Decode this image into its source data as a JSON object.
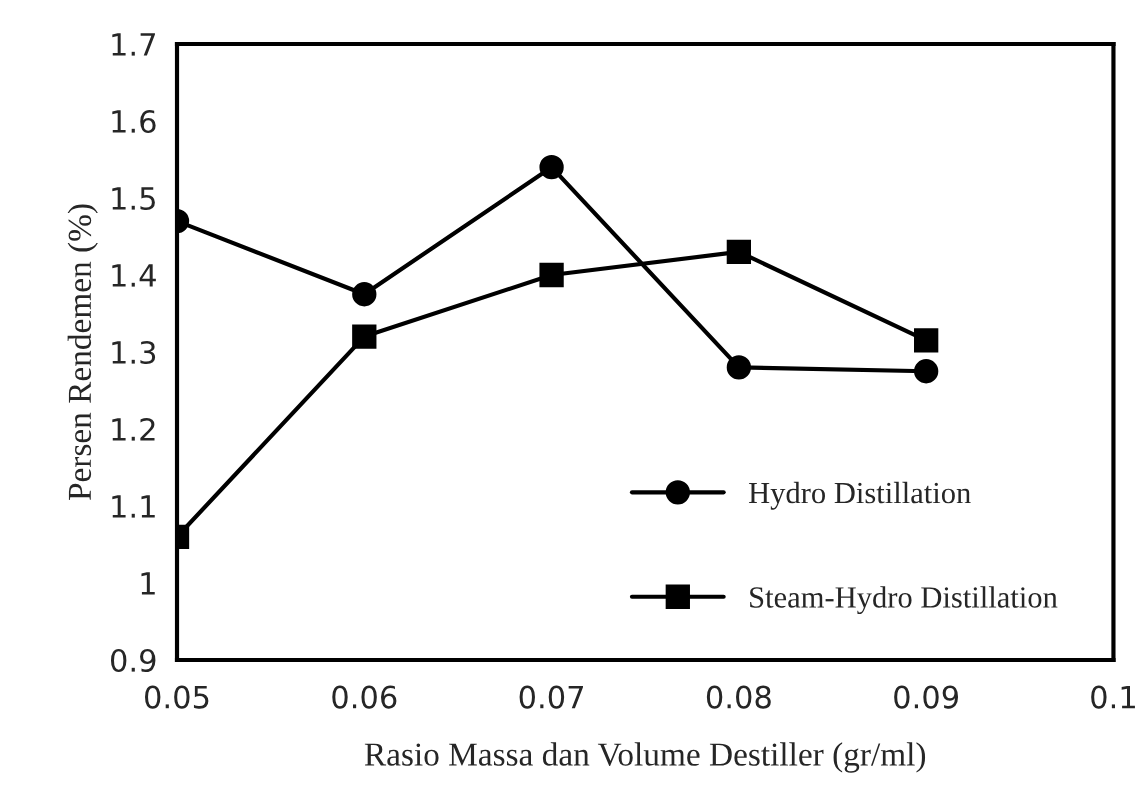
{
  "chart_data": {
    "type": "line",
    "xlabel": "Rasio Massa dan Volume Destiller (gr/ml)",
    "ylabel": "Persen Rendemen (%)",
    "x": [
      0.05,
      0.06,
      0.07,
      0.08,
      0.09
    ],
    "series": [
      {
        "name": "Hydro Distillation",
        "color": "#000000",
        "marker": "circle",
        "values": [
          1.47,
          1.375,
          1.54,
          1.28,
          1.275
        ]
      },
      {
        "name": "Steam-Hydro Distillation",
        "color": "#000000",
        "marker": "square",
        "values": [
          1.06,
          1.32,
          1.4,
          1.43,
          1.315
        ]
      }
    ],
    "xlim": [
      0.05,
      0.1
    ],
    "xticks": [
      {
        "value": 0.05,
        "label": "0.05"
      },
      {
        "value": 0.06,
        "label": "0.06"
      },
      {
        "value": 0.07,
        "label": "0.07"
      },
      {
        "value": 0.08,
        "label": "0.08"
      },
      {
        "value": 0.09,
        "label": "0.09"
      },
      {
        "value": 0.1,
        "label": "0.1"
      }
    ],
    "ylim": [
      0.9,
      1.7
    ],
    "yticks": [
      {
        "value": 0.9,
        "label": "0.9"
      },
      1,
      {
        "value": 1.1,
        "label": "1.1"
      },
      {
        "value": 1.2,
        "label": "1.2"
      },
      {
        "value": 1.3,
        "label": "1.3"
      },
      {
        "value": 1.4,
        "label": "1.4"
      },
      {
        "value": 1.5,
        "label": "1.5"
      },
      {
        "value": 1.6,
        "label": "1.6"
      },
      {
        "value": 1.7,
        "label": "1.7"
      }
    ],
    "grid": false,
    "legend": "lower right",
    "line_style": "solid"
  }
}
